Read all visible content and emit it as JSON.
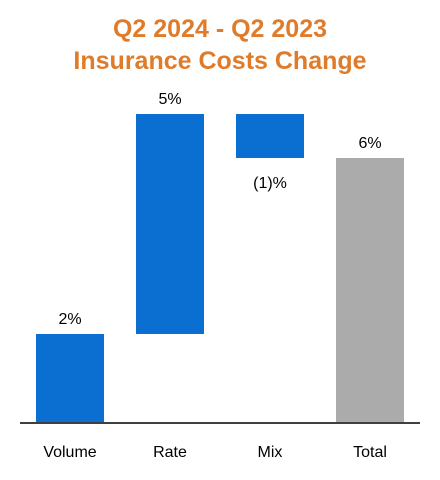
{
  "colors": {
    "title": "#E07B2A",
    "bar": "#0A6FD1",
    "total": "#ABABAB",
    "axis": "#404040",
    "text": "#000000"
  },
  "title_lines": [
    "Q2 2024 - Q2 2023",
    "Insurance Costs Change"
  ],
  "chart_data": {
    "type": "bar",
    "subtype": "waterfall",
    "title": "Q2 2024 - Q2 2023 Insurance Costs Change",
    "xlabel": "",
    "ylabel": "",
    "categories": [
      "Volume",
      "Rate",
      "Mix",
      "Total"
    ],
    "values": [
      2,
      5,
      -1,
      6
    ],
    "data_labels": [
      "2%",
      "5%",
      "(1)%",
      "6%"
    ],
    "is_total": [
      false,
      false,
      false,
      true
    ],
    "unit": "%",
    "ylim": [
      0,
      7
    ],
    "grid": false,
    "legend": "none"
  }
}
